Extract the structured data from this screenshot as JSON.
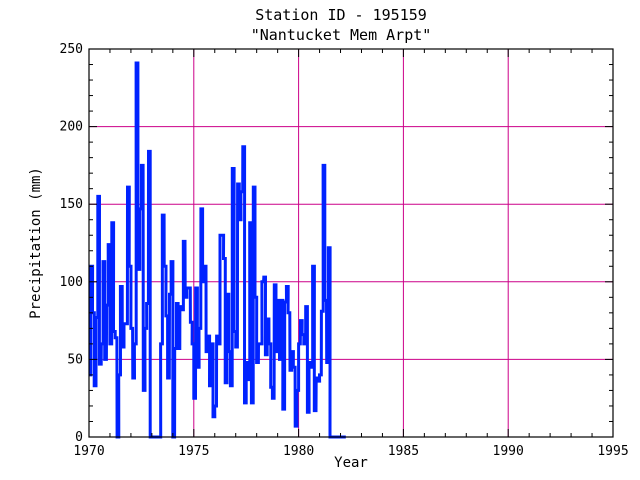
{
  "chart_data": {
    "type": "line",
    "title": "Station ID - 195159",
    "subtitle": "\"Nantucket Mem Arpt\"",
    "xlabel": "Year",
    "ylabel": "Precipitation (mm)",
    "xlim": [
      1970,
      1995
    ],
    "ylim": [
      0,
      250
    ],
    "xticks": [
      1970,
      1975,
      1980,
      1985,
      1990,
      1995
    ],
    "yticks": [
      0,
      50,
      100,
      150,
      200,
      250
    ],
    "grid": true,
    "colors": {
      "line": "#0022ff",
      "grid": "#cc0088",
      "axis": "#000000"
    },
    "series": [
      {
        "x": [
          1970.04,
          1970.13,
          1970.21,
          1970.29,
          1970.38,
          1970.46,
          1970.54,
          1970.63,
          1970.71,
          1970.79,
          1970.88,
          1970.96,
          1971.04,
          1971.13,
          1971.21,
          1971.29,
          1971.38,
          1971.46,
          1971.54,
          1971.63,
          1971.71,
          1971.79,
          1971.88,
          1971.96,
          1972.04,
          1972.13,
          1972.21,
          1972.29,
          1972.38,
          1972.46,
          1972.54,
          1972.63,
          1972.71,
          1972.79,
          1972.88,
          1972.96,
          1973.04,
          1973.13,
          1973.21,
          1973.29,
          1973.38,
          1973.46,
          1973.54,
          1973.63,
          1973.71,
          1973.79,
          1973.88,
          1973.96,
          1974.04,
          1974.13,
          1974.21,
          1974.29,
          1974.38,
          1974.46,
          1974.54,
          1974.63,
          1974.71,
          1974.79,
          1974.88,
          1974.96,
          1975.04,
          1975.13,
          1975.21,
          1975.29,
          1975.38,
          1975.46,
          1975.54,
          1975.63,
          1975.71,
          1975.79,
          1975.88,
          1975.96,
          1976.04,
          1976.13,
          1976.21,
          1976.29,
          1976.38,
          1976.46,
          1976.54,
          1976.63,
          1976.71,
          1976.79,
          1976.88,
          1976.96,
          1977.04,
          1977.13,
          1977.21,
          1977.29,
          1977.38,
          1977.46,
          1977.54,
          1977.63,
          1977.71,
          1977.79,
          1977.88,
          1977.96,
          1978.04,
          1978.13,
          1978.21,
          1978.29,
          1978.38,
          1978.46,
          1978.54,
          1978.63,
          1978.71,
          1978.79,
          1978.88,
          1978.96,
          1979.04,
          1979.13,
          1979.21,
          1979.29,
          1979.38,
          1979.46,
          1979.54,
          1979.63,
          1979.71,
          1979.79,
          1979.88,
          1979.96,
          1980.04,
          1980.13,
          1980.21,
          1980.29,
          1980.38,
          1980.46,
          1980.54,
          1980.63,
          1980.71,
          1980.79,
          1980.88,
          1980.96,
          1981.04,
          1981.13,
          1981.21,
          1981.29,
          1981.38,
          1981.46,
          1981.54,
          1981.63,
          1981.71,
          1981.79,
          1981.88,
          1981.96,
          1982.04,
          1982.13,
          1982.21
        ],
        "y": [
          40,
          110,
          80,
          33,
          77,
          155,
          47,
          60,
          113,
          50,
          85,
          124,
          60,
          138,
          68,
          64,
          0,
          40,
          97,
          58,
          73,
          73,
          161,
          110,
          70,
          38,
          60,
          241,
          108,
          147,
          175,
          30,
          70,
          86,
          184,
          0,
          0,
          0,
          0,
          0,
          0,
          60,
          143,
          110,
          78,
          38,
          92,
          113,
          0,
          57,
          86,
          57,
          84,
          82,
          126,
          90,
          96,
          96,
          74,
          60,
          25,
          96,
          45,
          70,
          147,
          100,
          110,
          55,
          65,
          33,
          60,
          13,
          20,
          65,
          60,
          130,
          130,
          115,
          35,
          92,
          55,
          33,
          173,
          68,
          58,
          163,
          140,
          158,
          187,
          22,
          48,
          37,
          138,
          22,
          161,
          90,
          48,
          60,
          60,
          100,
          103,
          53,
          76,
          60,
          32,
          25,
          98,
          55,
          88,
          50,
          88,
          18,
          87,
          97,
          80,
          43,
          55,
          45,
          7,
          30,
          60,
          75,
          66,
          60,
          84,
          16,
          48,
          45,
          110,
          17,
          38,
          36,
          40,
          81,
          175,
          88,
          48,
          122,
          0,
          0,
          0,
          0,
          0,
          0,
          0,
          0,
          0
        ]
      }
    ]
  }
}
